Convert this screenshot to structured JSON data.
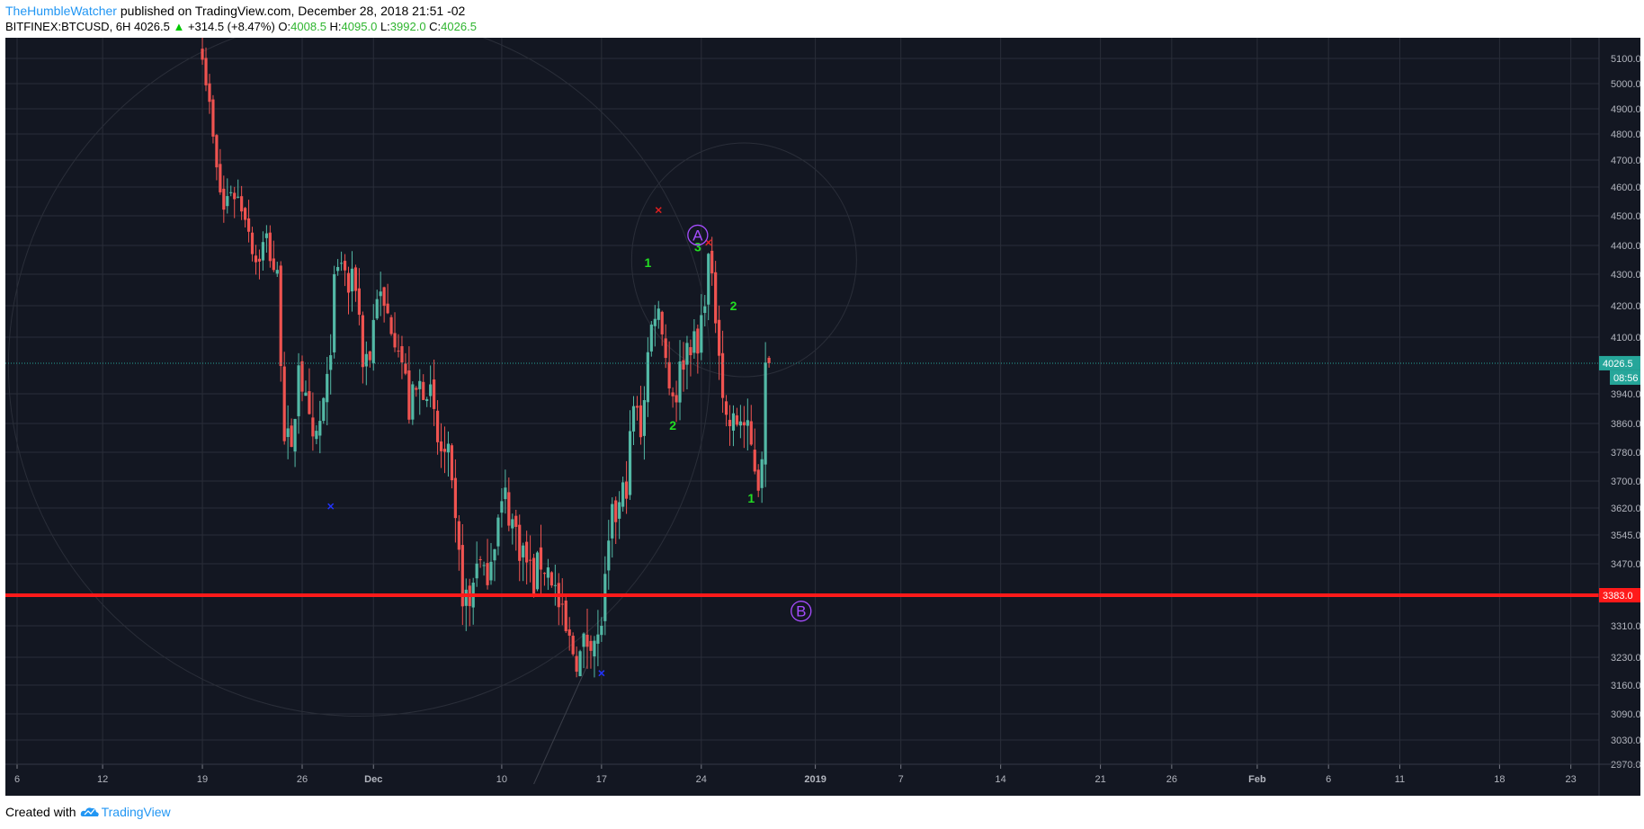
{
  "header": {
    "author": "TheHumbleWatcher",
    "published": "published on TradingView.com, December 28, 2018 21:51 -02",
    "symbol": "BITFINEX:BTCUSD, 6H",
    "last": "4026.5",
    "change": "+314.5 (+8.47%)",
    "o_label": "O:",
    "o_val": "4008.5",
    "h_label": "H:",
    "h_val": "4095.0",
    "l_label": "L:",
    "l_val": "3992.0",
    "c_label": "C:",
    "c_val": "4026.5"
  },
  "footer": {
    "created_with": "Created with",
    "brand": "TradingView"
  },
  "colors": {
    "bg": "#131722",
    "grid": "#2a2e39",
    "up": "#53b9a6",
    "down": "#ef5350",
    "wave": "#22dd22",
    "circle": "#a64dff",
    "support": "#ff1a1a",
    "last_price": "#26a69a"
  },
  "chart_data": {
    "type": "candlestick",
    "symbol": "BITFINEX:BTCUSD",
    "interval": "6H",
    "y_ticks": [
      5100,
      5000,
      4900,
      4800,
      4700,
      4600,
      4500,
      4400,
      4300,
      4200,
      4100,
      3940,
      3860,
      3780,
      3700,
      3620,
      3545,
      3470,
      3310,
      3230,
      3160,
      3090,
      3030,
      2970
    ],
    "y_tick_labels": [
      "5100.0",
      "5000.0",
      "4900.0",
      "4800.0",
      "4700.0",
      "4600.0",
      "4500.0",
      "4400.0",
      "4300.0",
      "4200.0",
      "4100.0",
      "3940.0",
      "3860.0",
      "3780.0",
      "3700.0",
      "3620.0",
      "3545.0",
      "3470.0",
      "3310.0",
      "3230.0",
      "3160.0",
      "3090.0",
      "3030.0",
      "2970.0"
    ],
    "x_ticks": [
      {
        "label": "6",
        "date": "2018-11-06"
      },
      {
        "label": "12",
        "date": "2018-11-12"
      },
      {
        "label": "19",
        "date": "2018-11-19"
      },
      {
        "label": "26",
        "date": "2018-11-26"
      },
      {
        "label": "Dec",
        "date": "2018-12-01"
      },
      {
        "label": "10",
        "date": "2018-12-10"
      },
      {
        "label": "17",
        "date": "2018-12-17"
      },
      {
        "label": "24",
        "date": "2018-12-24"
      },
      {
        "label": "2019",
        "date": "2019-01-01"
      },
      {
        "label": "7",
        "date": "2019-01-07"
      },
      {
        "label": "14",
        "date": "2019-01-14"
      },
      {
        "label": "21",
        "date": "2019-01-21"
      },
      {
        "label": "26",
        "date": "2019-01-26"
      },
      {
        "label": "Feb",
        "date": "2019-02-01"
      },
      {
        "label": "6",
        "date": "2019-02-06"
      },
      {
        "label": "11",
        "date": "2019-02-11"
      },
      {
        "label": "18",
        "date": "2019-02-18"
      },
      {
        "label": "23",
        "date": "2019-02-23"
      }
    ],
    "bold_ticks": [
      "Dec",
      "2019",
      "Feb"
    ],
    "last_price": {
      "value": 4026.5,
      "label": "4026.5",
      "countdown": "08:56"
    },
    "support_line": {
      "value": 3383,
      "label": "3383.0"
    },
    "close_path": [
      {
        "t": "2018-11-19T00:00",
        "c": 5150
      },
      {
        "t": "2018-11-19T12:00",
        "c": 4900
      },
      {
        "t": "2018-11-20T00:00",
        "c": 4650
      },
      {
        "t": "2018-11-20T12:00",
        "c": 4520
      },
      {
        "t": "2018-11-21T00:00",
        "c": 4600
      },
      {
        "t": "2018-11-21T12:00",
        "c": 4560
      },
      {
        "t": "2018-11-22T00:00",
        "c": 4520
      },
      {
        "t": "2018-11-22T18:00",
        "c": 4350
      },
      {
        "t": "2018-11-23T12:00",
        "c": 4420
      },
      {
        "t": "2018-11-24T06:00",
        "c": 4280
      },
      {
        "t": "2018-11-24T18:00",
        "c": 3850
      },
      {
        "t": "2018-11-25T06:00",
        "c": 3750
      },
      {
        "t": "2018-11-25T18:00",
        "c": 4050
      },
      {
        "t": "2018-11-26T06:00",
        "c": 3900
      },
      {
        "t": "2018-11-26T18:00",
        "c": 3780
      },
      {
        "t": "2018-11-27T06:00",
        "c": 3860
      },
      {
        "t": "2018-11-27T18:00",
        "c": 3950
      },
      {
        "t": "2018-11-28T06:00",
        "c": 4250
      },
      {
        "t": "2018-11-28T18:00",
        "c": 4350
      },
      {
        "t": "2018-11-29T06:00",
        "c": 4250
      },
      {
        "t": "2018-11-29T18:00",
        "c": 4280
      },
      {
        "t": "2018-11-30T06:00",
        "c": 4050
      },
      {
        "t": "2018-11-30T18:00",
        "c": 4050
      },
      {
        "t": "2018-12-01T06:00",
        "c": 4250
      },
      {
        "t": "2018-12-01T18:00",
        "c": 4180
      },
      {
        "t": "2018-12-02T06:00",
        "c": 4150
      },
      {
        "t": "2018-12-02T18:00",
        "c": 4100
      },
      {
        "t": "2018-12-03T12:00",
        "c": 3900
      },
      {
        "t": "2018-12-04T06:00",
        "c": 3960
      },
      {
        "t": "2018-12-04T18:00",
        "c": 3980
      },
      {
        "t": "2018-12-05T12:00",
        "c": 3800
      },
      {
        "t": "2018-12-06T06:00",
        "c": 3750
      },
      {
        "t": "2018-12-06T18:00",
        "c": 3550
      },
      {
        "t": "2018-12-07T06:00",
        "c": 3400
      },
      {
        "t": "2018-12-07T18:00",
        "c": 3350
      },
      {
        "t": "2018-12-08T06:00",
        "c": 3500
      },
      {
        "t": "2018-12-08T18:00",
        "c": 3420
      },
      {
        "t": "2018-12-09T12:00",
        "c": 3550
      },
      {
        "t": "2018-12-10T06:00",
        "c": 3650
      },
      {
        "t": "2018-12-10T18:00",
        "c": 3580
      },
      {
        "t": "2018-12-11T12:00",
        "c": 3500
      },
      {
        "t": "2018-12-12T06:00",
        "c": 3420
      },
      {
        "t": "2018-12-12T18:00",
        "c": 3480
      },
      {
        "t": "2018-12-13T12:00",
        "c": 3440
      },
      {
        "t": "2018-12-14T06:00",
        "c": 3310
      },
      {
        "t": "2018-12-14T18:00",
        "c": 3260
      },
      {
        "t": "2018-12-15T12:00",
        "c": 3230
      },
      {
        "t": "2018-12-16T06:00",
        "c": 3300
      },
      {
        "t": "2018-12-16T18:00",
        "c": 3260
      },
      {
        "t": "2018-12-17T06:00",
        "c": 3400
      },
      {
        "t": "2018-12-17T18:00",
        "c": 3580
      },
      {
        "t": "2018-12-18T06:00",
        "c": 3620
      },
      {
        "t": "2018-12-18T18:00",
        "c": 3700
      },
      {
        "t": "2018-12-19T06:00",
        "c": 3900
      },
      {
        "t": "2018-12-19T18:00",
        "c": 3850
      },
      {
        "t": "2018-12-20T06:00",
        "c": 4050
      },
      {
        "t": "2018-12-20T18:00",
        "c": 4200
      },
      {
        "t": "2018-12-21T06:00",
        "c": 4150
      },
      {
        "t": "2018-12-21T18:00",
        "c": 3960
      },
      {
        "t": "2018-12-22T06:00",
        "c": 3950
      },
      {
        "t": "2018-12-22T18:00",
        "c": 4050
      },
      {
        "t": "2018-12-23T06:00",
        "c": 4100
      },
      {
        "t": "2018-12-23T18:00",
        "c": 4050
      },
      {
        "t": "2018-12-24T06:00",
        "c": 4250
      },
      {
        "t": "2018-12-24T12:00",
        "c": 4350
      },
      {
        "t": "2018-12-24T18:00",
        "c": 4250
      },
      {
        "t": "2018-12-25T06:00",
        "c": 4100
      },
      {
        "t": "2018-12-25T12:00",
        "c": 3950
      },
      {
        "t": "2018-12-25T18:00",
        "c": 3870
      },
      {
        "t": "2018-12-26T06:00",
        "c": 3850
      },
      {
        "t": "2018-12-26T18:00",
        "c": 3880
      },
      {
        "t": "2018-12-27T06:00",
        "c": 3820
      },
      {
        "t": "2018-12-27T18:00",
        "c": 3750
      },
      {
        "t": "2018-12-28T00:00",
        "c": 3700
      },
      {
        "t": "2018-12-28T06:00",
        "c": 3800
      },
      {
        "t": "2018-12-28T12:00",
        "c": 4000
      },
      {
        "t": "2018-12-28T18:00",
        "c": 4026.5
      }
    ],
    "annotations": [
      {
        "label": "1",
        "t": "2018-12-20T06:00",
        "price": 4340,
        "kind": "wave"
      },
      {
        "label": "2",
        "t": "2018-12-22T00:00",
        "price": 3855,
        "kind": "wave"
      },
      {
        "label": "3",
        "t": "2018-12-23T18:00",
        "price": 4395,
        "kind": "wave"
      },
      {
        "label": "2",
        "t": "2018-12-26T06:00",
        "price": 4200,
        "kind": "wave"
      },
      {
        "label": "1",
        "t": "2018-12-27T12:00",
        "price": 3650,
        "kind": "wave"
      },
      {
        "label": "A",
        "t": "2018-12-23T18:00",
        "price": 4435,
        "kind": "circle"
      },
      {
        "label": "B",
        "t": "2018-12-31T00:00",
        "price": 3345,
        "kind": "circle"
      }
    ],
    "markers": [
      {
        "t": "2018-12-21T00:00",
        "price": 4520,
        "color": "#e02020"
      },
      {
        "t": "2018-12-24T12:00",
        "price": 4410,
        "color": "#e02020"
      },
      {
        "t": "2018-11-28T00:00",
        "price": 3625,
        "color": "#2233ff"
      },
      {
        "t": "2018-12-17T00:00",
        "price": 3190,
        "color": "#2233ff"
      }
    ]
  }
}
